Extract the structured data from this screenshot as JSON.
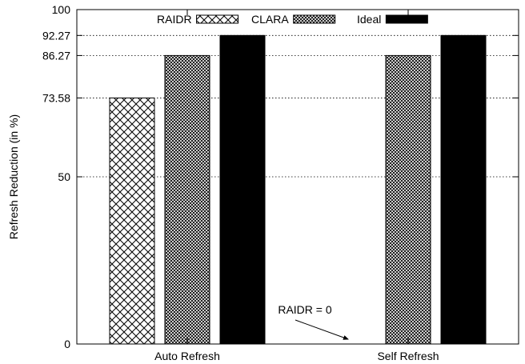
{
  "chart_data": {
    "type": "bar",
    "ylabel": "Refresh Reduction (in %)",
    "xlabel": "",
    "ylim": [
      0,
      100
    ],
    "yticks": [
      0,
      50,
      73.58,
      86.27,
      92.27,
      100
    ],
    "ytick_labels": [
      "0",
      "50",
      "73.58",
      "86.27",
      "92.27",
      "100"
    ],
    "categories": [
      "Auto Refresh",
      "Self Refresh"
    ],
    "series": [
      {
        "name": "RAIDR",
        "values": [
          73.58,
          0
        ],
        "pattern": "crosshatch-sparse"
      },
      {
        "name": "CLARA",
        "values": [
          86.27,
          86.27
        ],
        "pattern": "crosshatch-dense"
      },
      {
        "name": "Ideal",
        "values": [
          92.27,
          92.27
        ],
        "pattern": "solid-black"
      }
    ],
    "grid": {
      "horizontal": true,
      "style": "dotted",
      "at": [
        50,
        73.58,
        86.27,
        92.27
      ]
    },
    "legend": {
      "placement": "top-center",
      "orientation": "horizontal"
    },
    "annotations": [
      {
        "text": "RAIDR = 0",
        "category": "Self Refresh",
        "series": "RAIDR"
      }
    ]
  }
}
